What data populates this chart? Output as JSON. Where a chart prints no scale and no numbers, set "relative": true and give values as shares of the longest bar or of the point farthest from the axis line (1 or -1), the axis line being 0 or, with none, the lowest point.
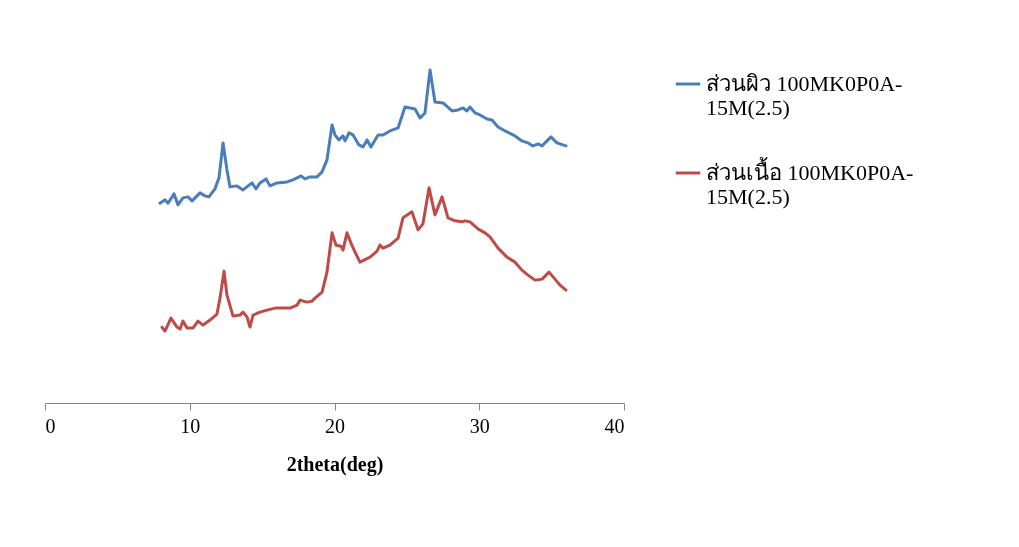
{
  "chart_data": {
    "type": "line",
    "relative": true,
    "xlabel": "2theta(deg)",
    "xlim": [
      0,
      40
    ],
    "xticks": [
      0,
      10,
      20,
      30,
      40
    ],
    "grid": false,
    "legend": "right",
    "marker": "none",
    "line_style": "solid",
    "series": [
      {
        "name": "ส่วนผิว 100MK0P0A-15M(2.5)",
        "color": "#4a7ebb",
        "x": [
          7.94,
          8.29,
          8.5,
          8.91,
          9.19,
          9.53,
          9.88,
          10.16,
          10.71,
          11.05,
          11.33,
          11.74,
          12.02,
          12.3,
          12.57,
          12.78,
          13.26,
          13.68,
          14.3,
          14.58,
          14.85,
          15.27,
          15.54,
          16.03,
          16.72,
          17.13,
          17.69,
          17.96,
          18.31,
          18.79,
          19.14,
          19.48,
          19.83,
          20.03,
          20.31,
          20.59,
          20.73,
          21.0,
          21.28,
          21.69,
          21.97,
          22.25,
          22.52,
          23.01,
          23.35,
          23.83,
          24.39,
          24.87,
          25.56,
          25.91,
          26.25,
          26.6,
          26.94,
          27.5,
          28.12,
          28.53,
          28.88,
          29.15,
          29.36,
          29.71,
          30.05,
          30.54,
          30.88,
          31.3,
          31.92,
          32.47,
          32.95,
          33.37,
          33.71,
          34.06,
          34.34,
          34.96,
          35.37,
          35.99
        ],
        "values": [
          0.6,
          0.61,
          0.6,
          0.628,
          0.595,
          0.616,
          0.619,
          0.607,
          0.631,
          0.622,
          0.619,
          0.643,
          0.676,
          0.781,
          0.7,
          0.649,
          0.652,
          0.64,
          0.661,
          0.643,
          0.661,
          0.673,
          0.652,
          0.661,
          0.664,
          0.67,
          0.682,
          0.673,
          0.679,
          0.679,
          0.694,
          0.73,
          0.835,
          0.805,
          0.79,
          0.802,
          0.787,
          0.811,
          0.805,
          0.775,
          0.769,
          0.79,
          0.769,
          0.805,
          0.805,
          0.817,
          0.826,
          0.889,
          0.883,
          0.856,
          0.871,
          1.0,
          0.904,
          0.901,
          0.877,
          0.88,
          0.886,
          0.877,
          0.889,
          0.871,
          0.865,
          0.853,
          0.85,
          0.829,
          0.814,
          0.802,
          0.787,
          0.781,
          0.772,
          0.778,
          0.772,
          0.799,
          0.781,
          0.772
        ]
      },
      {
        "name": "ส่วนเนื้อ 100MK0P0A-15M(2.5)",
        "color": "#be4b48",
        "x": [
          8.08,
          8.29,
          8.7,
          9.12,
          9.33,
          9.53,
          9.81,
          10.22,
          10.57,
          10.92,
          11.4,
          11.88,
          12.09,
          12.37,
          12.57,
          12.99,
          13.47,
          13.68,
          13.96,
          14.16,
          14.37,
          14.85,
          15.34,
          15.89,
          16.44,
          16.93,
          17.41,
          17.62,
          18.1,
          18.45,
          18.65,
          19.14,
          19.48,
          19.83,
          20.1,
          20.45,
          20.59,
          20.86,
          21.14,
          21.42,
          21.76,
          22.45,
          22.94,
          23.14,
          23.35,
          23.83,
          24.39,
          24.73,
          25.35,
          25.77,
          26.11,
          26.53,
          26.94,
          27.43,
          27.84,
          28.32,
          28.81,
          29.02,
          29.36,
          29.91,
          30.4,
          30.74,
          31.3,
          31.92,
          32.47,
          32.95,
          33.37,
          33.85,
          34.34,
          34.82,
          35.23,
          35.58,
          35.99
        ],
        "values": [
          0.228,
          0.216,
          0.255,
          0.228,
          0.222,
          0.246,
          0.225,
          0.225,
          0.246,
          0.234,
          0.249,
          0.267,
          0.315,
          0.396,
          0.324,
          0.261,
          0.264,
          0.273,
          0.258,
          0.228,
          0.264,
          0.273,
          0.279,
          0.285,
          0.285,
          0.285,
          0.294,
          0.309,
          0.303,
          0.306,
          0.315,
          0.333,
          0.393,
          0.511,
          0.474,
          0.471,
          0.459,
          0.511,
          0.48,
          0.453,
          0.423,
          0.438,
          0.456,
          0.474,
          0.465,
          0.474,
          0.495,
          0.556,
          0.574,
          0.52,
          0.538,
          0.646,
          0.565,
          0.619,
          0.556,
          0.547,
          0.544,
          0.547,
          0.544,
          0.523,
          0.511,
          0.499,
          0.465,
          0.438,
          0.423,
          0.399,
          0.384,
          0.369,
          0.372,
          0.393,
          0.372,
          0.354,
          0.339
        ]
      }
    ]
  }
}
